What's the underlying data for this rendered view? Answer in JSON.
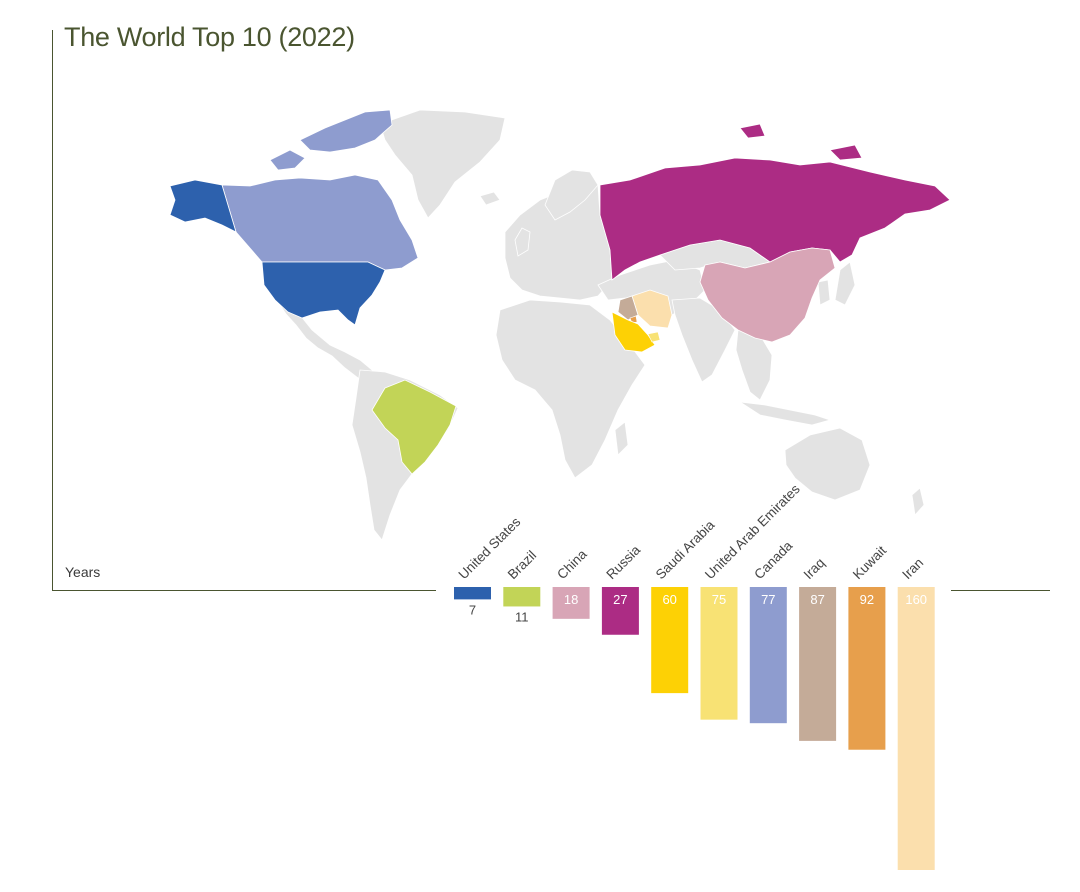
{
  "title": "The World Top 10 (2022)",
  "axis_caption": "Years",
  "colors": {
    "frame": "#4a5530",
    "land": "#e3e3e3",
    "border": "#ffffff"
  },
  "chart_data": {
    "type": "bar",
    "title": "The World Top 10 (2022)",
    "ylabel": "Years",
    "orientation": "downward",
    "ylim": [
      0,
      160
    ],
    "categories": [
      "United States",
      "Brazil",
      "China",
      "Russia",
      "Saudi Arabia",
      "United Arab Emirates",
      "Canada",
      "Iraq",
      "Kuwait",
      "Iran"
    ],
    "values": [
      7,
      11,
      18,
      27,
      60,
      75,
      77,
      87,
      92,
      160
    ],
    "bar_colors": [
      "#2d61ad",
      "#c2d457",
      "#d8a5b6",
      "#ac2c84",
      "#fdd105",
      "#f8e274",
      "#8e9ccf",
      "#c4ab98",
      "#e79f4c",
      "#fbdfad"
    ]
  },
  "map": {
    "highlighted": [
      {
        "country": "United States",
        "color": "#2d61ad"
      },
      {
        "country": "Brazil",
        "color": "#c2d457"
      },
      {
        "country": "China",
        "color": "#d8a5b6"
      },
      {
        "country": "Russia",
        "color": "#ac2c84"
      },
      {
        "country": "Saudi Arabia",
        "color": "#fdd105"
      },
      {
        "country": "United Arab Emirates",
        "color": "#f8e274"
      },
      {
        "country": "Canada",
        "color": "#8e9ccf"
      },
      {
        "country": "Iraq",
        "color": "#c4ab98"
      },
      {
        "country": "Kuwait",
        "color": "#e79f4c"
      },
      {
        "country": "Iran",
        "color": "#fbdfad"
      }
    ]
  }
}
